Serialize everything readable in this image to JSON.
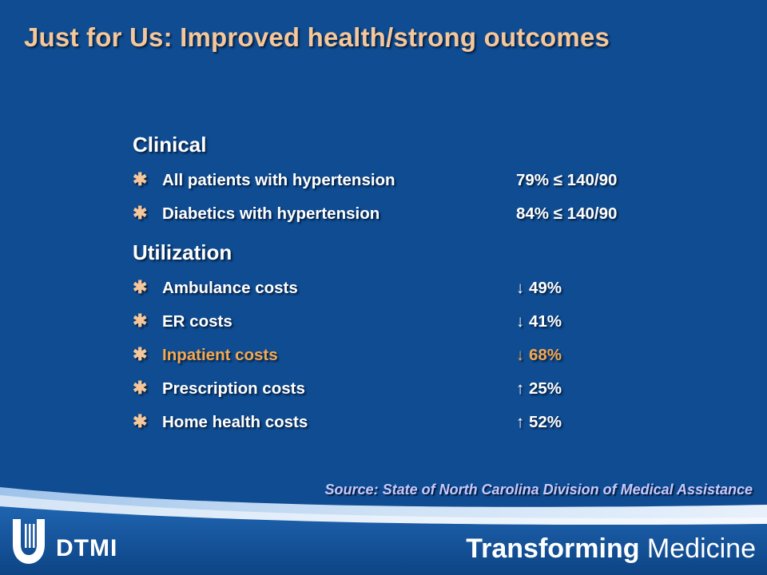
{
  "title": "Just for Us: Improved health/strong outcomes",
  "sections": [
    {
      "heading": "Clinical",
      "items": [
        {
          "label": "All patients with hypertension",
          "value": "79% ≤ 140/90"
        },
        {
          "label": "Diabetics with hypertension",
          "value": "84% ≤ 140/90"
        }
      ]
    },
    {
      "heading": "Utilization",
      "items": [
        {
          "label": "Ambulance costs",
          "value": "↓ 49%"
        },
        {
          "label": "ER costs",
          "value": "↓ 41%"
        },
        {
          "label": "Inpatient costs",
          "value": "↓ 68%"
        },
        {
          "label": "Prescription costs",
          "value": "↑ 25%"
        },
        {
          "label": "Home health costs",
          "value": "↑ 52%"
        }
      ]
    }
  ],
  "bullet_glyph": "✱",
  "source": "Source: State of North Carolina Division of Medical Assistance",
  "footer": {
    "logo_text": "DTMI",
    "tagline_bold": "Transforming",
    "tagline_rest": " Medicine"
  },
  "colors": {
    "background": "#0f4c92",
    "title": "#f5c79a",
    "highlight": "#f5a94f",
    "source": "#c7c9ff"
  }
}
